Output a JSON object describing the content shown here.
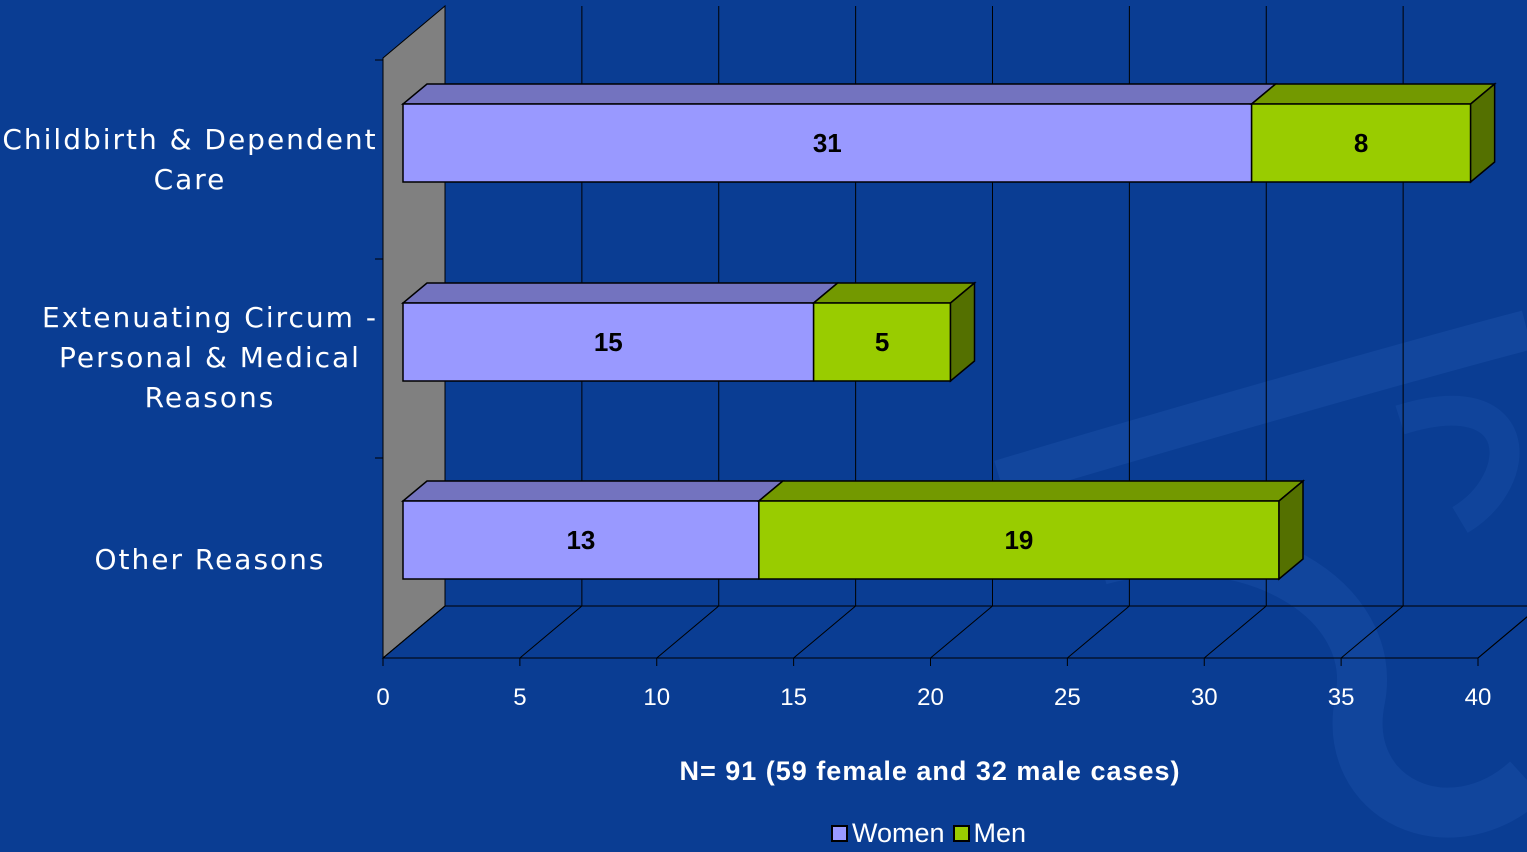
{
  "chart_data": {
    "type": "bar",
    "orientation": "horizontal",
    "stacked": true,
    "style": "3d",
    "categories": [
      "Childbirth & Dependent Care",
      "Extenuating Circum - Personal & Medical Reasons",
      "Other Reasons"
    ],
    "category_lines": [
      [
        "Childbirth & Dependent",
        "Care"
      ],
      [
        "Extenuating Circum -",
        "Personal & Medical",
        "Reasons"
      ],
      [
        "Other Reasons"
      ]
    ],
    "series": [
      {
        "name": "Women",
        "values": [
          31,
          15,
          13
        ],
        "color": "#9999ff"
      },
      {
        "name": "Men",
        "values": [
          8,
          5,
          19
        ],
        "color": "#99cc00"
      }
    ],
    "xlabel": "N= 91 (59 female and 32 male cases)",
    "ylabel": "",
    "xlim": [
      0,
      40
    ],
    "xticks": [
      "0",
      "5",
      "10",
      "15",
      "20",
      "25",
      "30",
      "35",
      "40"
    ],
    "grid": true,
    "legend_position": "bottom"
  },
  "colors": {
    "background": "#0a3d93",
    "wall": "#808080",
    "women": "#9999ff",
    "men": "#99cc00",
    "text": "#ffffff"
  }
}
